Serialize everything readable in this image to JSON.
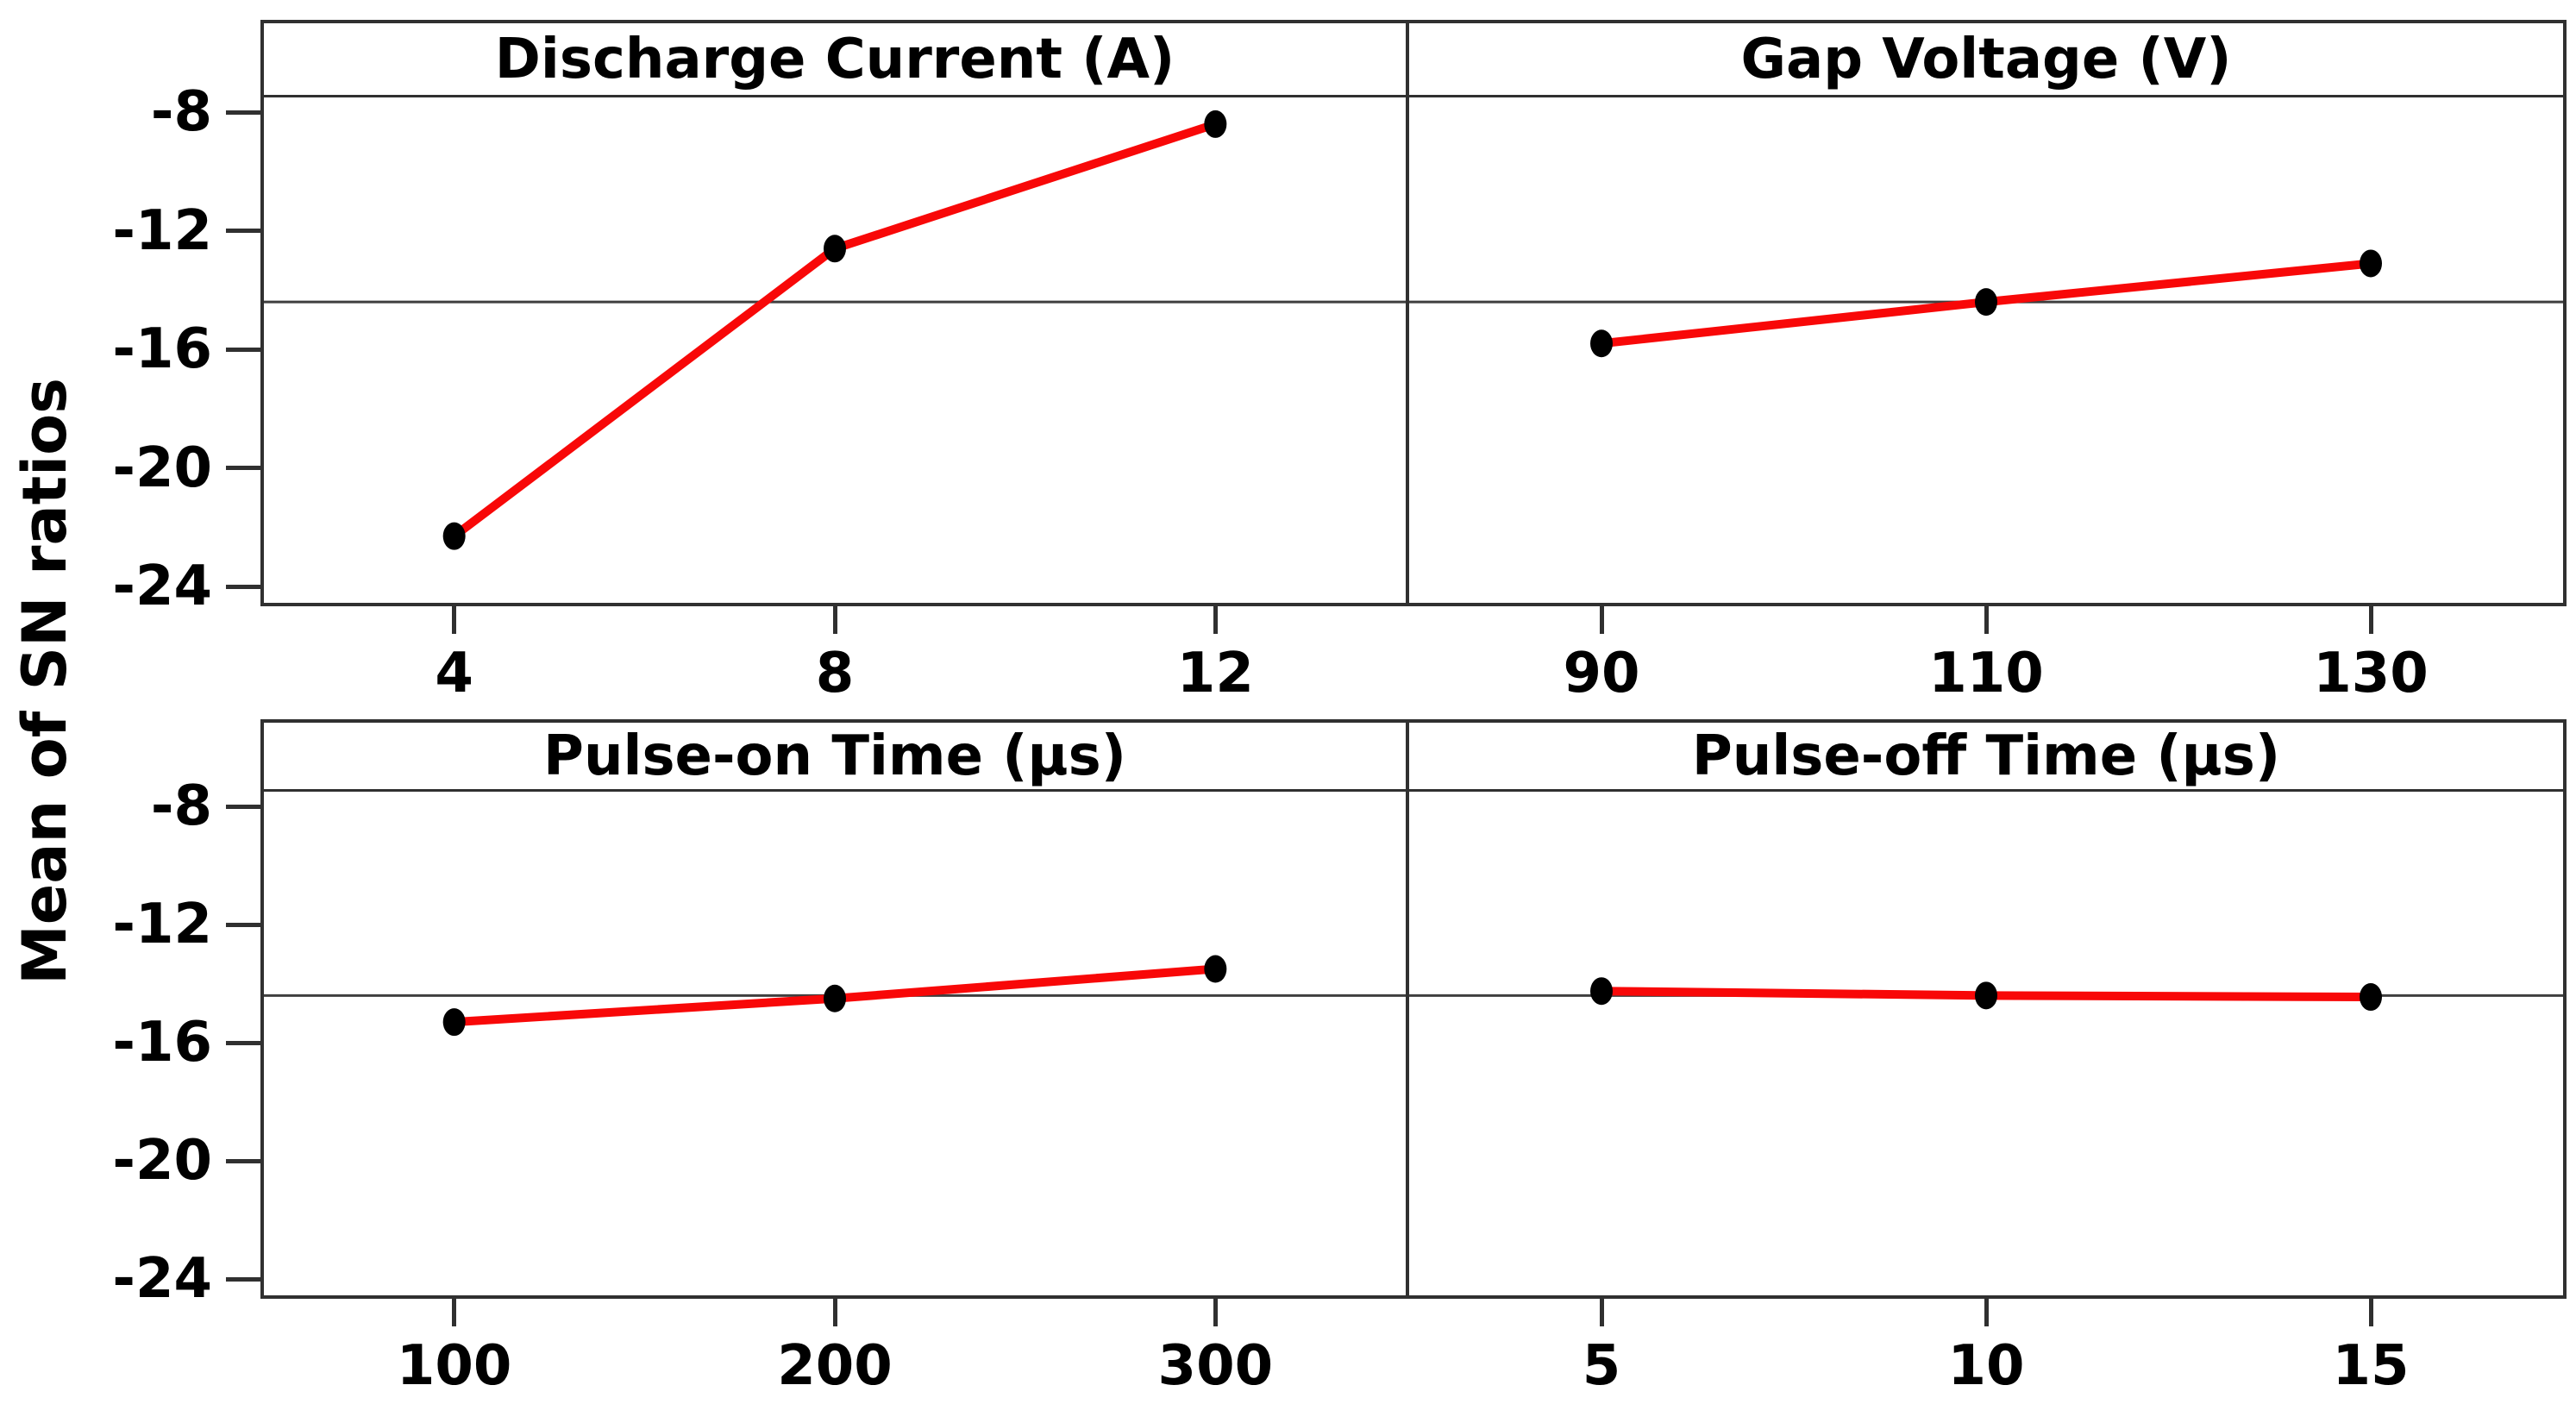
{
  "figure": {
    "background": "#ffffff",
    "frame_color": "#303030",
    "ref_line_color": "#3f3f3f",
    "line_color": "#f80808",
    "marker_color": "#000000"
  },
  "y_axis": {
    "label": "Mean of SN ratios",
    "ticks": [
      -8,
      -12,
      -16,
      -20,
      -24
    ],
    "range_top": -7.5,
    "range_bottom": -24.55
  },
  "reference_line": -14.4,
  "chart_data": [
    {
      "type": "line",
      "title": "Discharge Current (A)",
      "categories": [
        "4",
        "8",
        "12"
      ],
      "x": [
        4,
        8,
        12
      ],
      "values": [
        -22.3,
        -12.6,
        -8.4
      ],
      "ylabel": "Mean of SN ratios",
      "yticks": [
        -8,
        -12,
        -16,
        -20,
        -24
      ],
      "ylim": [
        -24.55,
        -7.5
      ],
      "reference_line": -14.4,
      "grid": false,
      "legend": "none"
    },
    {
      "type": "line",
      "title": "Gap Voltage (V)",
      "categories": [
        "90",
        "110",
        "130"
      ],
      "x": [
        90,
        110,
        130
      ],
      "values": [
        -15.8,
        -14.4,
        -13.1
      ],
      "ylabel": "Mean of SN ratios",
      "yticks": [
        -8,
        -12,
        -16,
        -20,
        -24
      ],
      "ylim": [
        -24.55,
        -7.5
      ],
      "reference_line": -14.4,
      "grid": false,
      "legend": "none"
    },
    {
      "type": "line",
      "title": "Pulse-on Time (µs)",
      "categories": [
        "100",
        "200",
        "300"
      ],
      "x": [
        100,
        200,
        300
      ],
      "values": [
        -15.3,
        -14.5,
        -13.5
      ],
      "ylabel": "Mean of SN ratios",
      "yticks": [
        -8,
        -12,
        -16,
        -20,
        -24
      ],
      "ylim": [
        -24.55,
        -7.5
      ],
      "reference_line": -14.4,
      "grid": false,
      "legend": "none"
    },
    {
      "type": "line",
      "title": "Pulse-off Time (µs)",
      "categories": [
        "5",
        "10",
        "15"
      ],
      "x": [
        5,
        10,
        15
      ],
      "values": [
        -14.25,
        -14.4,
        -14.45
      ],
      "ylabel": "Mean of SN ratios",
      "yticks": [
        -8,
        -12,
        -16,
        -20,
        -24
      ],
      "ylim": [
        -24.55,
        -7.5
      ],
      "reference_line": -14.4,
      "grid": false,
      "legend": "none"
    }
  ]
}
